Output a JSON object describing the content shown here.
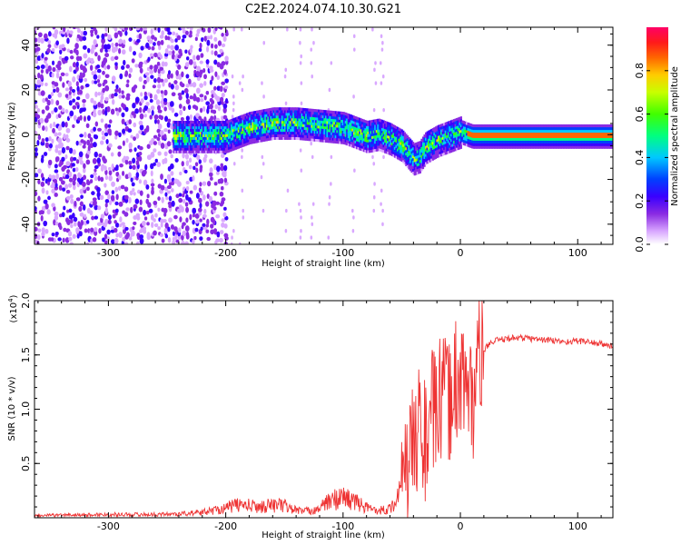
{
  "title": "C2E2.2024.074.10.30.G21",
  "chart_data": [
    {
      "type": "heatmap",
      "xlabel": "Height of straight line (km)",
      "ylabel": "Frequency (Hz)",
      "xlim": [
        -363,
        130
      ],
      "ylim": [
        -49,
        48
      ],
      "xticks": [
        -300,
        -200,
        -100,
        0,
        100
      ],
      "yticks": [
        -40,
        -20,
        0,
        20,
        40
      ],
      "xtick_labels": [
        "-300",
        "-200",
        "-100",
        "0",
        "100"
      ],
      "ytick_labels": [
        "-40",
        "-20",
        "0",
        "20",
        "40"
      ],
      "colorbar": {
        "label": "Normalized spectral amplitude",
        "range": [
          0,
          1
        ],
        "ticks": [
          0,
          0.2,
          0.4,
          0.6,
          0.8
        ],
        "tick_labels": [
          "0.0",
          "0.2",
          "0.4",
          "0.6",
          "0.8"
        ],
        "colormap": [
          "#ffffff",
          "#d9a8ff",
          "#8a2be2",
          "#3a00ff",
          "#0040ff",
          "#00c8ff",
          "#00ff80",
          "#40ff00",
          "#c8ff00",
          "#ffcc00",
          "#ff6600",
          "#ff1a1a",
          "#ff0066"
        ]
      },
      "ridge": {
        "x": [
          -240,
          -220,
          -200,
          -180,
          -160,
          -140,
          -120,
          -100,
          -80,
          -70,
          -60,
          -50,
          -40,
          -35,
          -30,
          -20,
          -10,
          0,
          10,
          30,
          60,
          90,
          120,
          130
        ],
        "y": [
          0,
          0,
          0,
          4,
          6,
          6,
          5,
          4,
          0,
          1,
          -1,
          -4,
          -10,
          -9,
          -5,
          -2,
          0,
          2,
          0,
          0,
          0,
          0,
          0,
          0
        ]
      },
      "grid": false
    },
    {
      "type": "line",
      "xlabel": "Height of straight line (km)",
      "ylabel": "SNR (10 * v/v)",
      "multiplier_label": "(x10",
      "multiplier_exp": "4",
      "multiplier_close": ")",
      "xlim": [
        -363,
        130
      ],
      "ylim": [
        0,
        20000
      ],
      "xticks": [
        -300,
        -200,
        -100,
        0,
        100
      ],
      "yticks": [
        5000,
        10000,
        15000,
        20000
      ],
      "xtick_labels": [
        "-300",
        "-200",
        "-100",
        "0",
        "100"
      ],
      "ytick_labels": [
        "0.5",
        "1.0",
        "1.5",
        "2.0"
      ],
      "series": [
        {
          "color": "#ee3333",
          "x": [
            -363,
            -340,
            -300,
            -260,
            -240,
            -220,
            -200,
            -190,
            -180,
            -170,
            -160,
            -150,
            -140,
            -130,
            -120,
            -110,
            -100,
            -90,
            -80,
            -70,
            -60,
            -50,
            -45,
            -40,
            -35,
            -30,
            -25,
            -20,
            -15,
            -10,
            -5,
            0,
            5,
            10,
            15,
            20,
            25,
            30,
            40,
            50,
            60,
            70,
            80,
            90,
            100,
            110,
            120,
            130
          ],
          "y": [
            200,
            250,
            300,
            300,
            350,
            500,
            900,
            1200,
            1100,
            1000,
            1200,
            1100,
            700,
            600,
            900,
            1600,
            1900,
            1500,
            900,
            700,
            800,
            2500,
            4500,
            6500,
            9000,
            7000,
            9500,
            10000,
            11000,
            10500,
            12500,
            13500,
            12000,
            10500,
            14500,
            15500,
            16000,
            16300,
            16500,
            16600,
            16500,
            16400,
            16300,
            16200,
            16300,
            16200,
            16000,
            15800
          ]
        }
      ],
      "grid": false
    }
  ]
}
